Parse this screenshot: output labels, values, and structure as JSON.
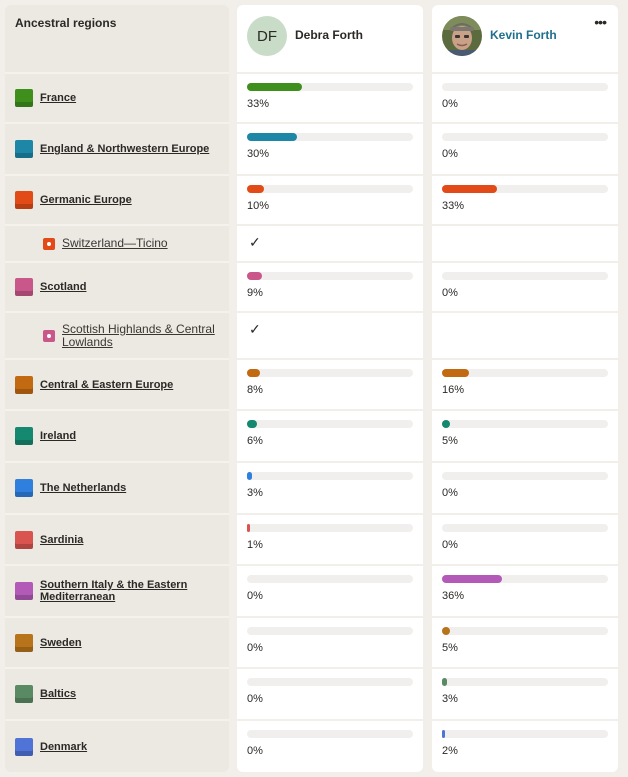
{
  "header": {
    "title": "Ancestral regions"
  },
  "people": [
    {
      "initials": "DF",
      "name": "Debra Forth"
    },
    {
      "name": "Kevin Forth",
      "more_label": "•••"
    }
  ],
  "rows": [
    {
      "label": "France",
      "color": "#3f8f1d",
      "type": "region",
      "a": "33%",
      "a_val": 33,
      "b": "0%",
      "b_val": 0
    },
    {
      "label": "England & Northwestern Europe",
      "color": "#1e87a8",
      "type": "region",
      "a": "30%",
      "a_val": 30,
      "b": "0%",
      "b_val": 0
    },
    {
      "label": "Germanic Europe",
      "color": "#e24b17",
      "type": "region",
      "a": "10%",
      "a_val": 10,
      "b": "33%",
      "b_val": 33
    },
    {
      "label": "Switzerland—Ticino",
      "color": "#e24b17",
      "type": "sub",
      "a": "✓",
      "b": ""
    },
    {
      "label": "Scotland",
      "color": "#c9578a",
      "type": "region",
      "a": "9%",
      "a_val": 9,
      "b": "0%",
      "b_val": 0
    },
    {
      "label": "Scottish Highlands & Central Lowlands",
      "color": "#c9578a",
      "type": "sub",
      "a": "✓",
      "b": ""
    },
    {
      "label": "Central & Eastern Europe",
      "color": "#c26a12",
      "type": "region",
      "a": "8%",
      "a_val": 8,
      "b": "16%",
      "b_val": 16
    },
    {
      "label": "Ireland",
      "color": "#158870",
      "type": "region",
      "a": "6%",
      "a_val": 6,
      "b": "5%",
      "b_val": 5
    },
    {
      "label": "The Netherlands",
      "color": "#2e7fde",
      "type": "region",
      "a": "3%",
      "a_val": 3,
      "b": "0%",
      "b_val": 0
    },
    {
      "label": "Sardinia",
      "color": "#d9534f",
      "type": "region",
      "a": "1%",
      "a_val": 1,
      "b": "0%",
      "b_val": 0
    },
    {
      "label": "Southern Italy & the Eastern Mediterranean",
      "color": "#b35ab8",
      "type": "region",
      "a": "0%",
      "a_val": 0,
      "b": "36%",
      "b_val": 36
    },
    {
      "label": "Sweden",
      "color": "#b8741a",
      "type": "region",
      "a": "0%",
      "a_val": 0,
      "b": "5%",
      "b_val": 5
    },
    {
      "label": "Baltics",
      "color": "#5a8a64",
      "type": "region",
      "a": "0%",
      "a_val": 0,
      "b": "3%",
      "b_val": 3
    },
    {
      "label": "Denmark",
      "color": "#4f73d6",
      "type": "region",
      "a": "0%",
      "a_val": 0,
      "b": "2%",
      "b_val": 2
    }
  ]
}
